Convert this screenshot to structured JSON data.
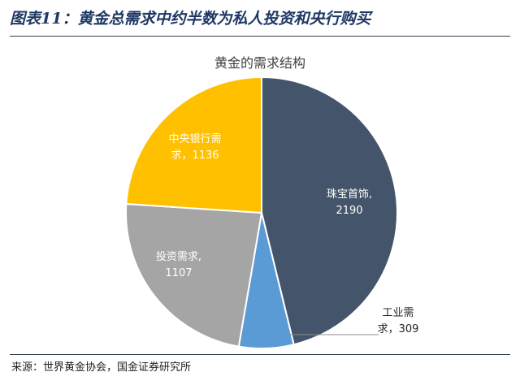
{
  "figure_title": "图表11：黄金总需求中约半数为私人投资和央行购买",
  "source_note": "来源：世界黄金协会，国金证券研究所",
  "chart_data": {
    "type": "pie",
    "title": "黄金的需求结构",
    "slices": [
      {
        "label_lines": [
          "珠宝首饰,",
          "2190"
        ],
        "name": "珠宝首饰",
        "value": 2190,
        "color": "#44546a",
        "text_color": "#ffffff"
      },
      {
        "label_lines": [
          "工业需",
          "求，309"
        ],
        "name": "工业需求",
        "value": 309,
        "color": "#5b9bd5",
        "text_color": "#262626"
      },
      {
        "label_lines": [
          "投资需求,",
          "1107"
        ],
        "name": "投资需求",
        "value": 1107,
        "color": "#a5a5a5",
        "text_color": "#ffffff"
      },
      {
        "label_lines": [
          "中央银行需",
          "求，1136"
        ],
        "name": "中央银行需求",
        "value": 1136,
        "color": "#ffc000",
        "text_color": "#ffffff"
      }
    ],
    "start_angle_deg": 0,
    "direction": "clockwise"
  }
}
